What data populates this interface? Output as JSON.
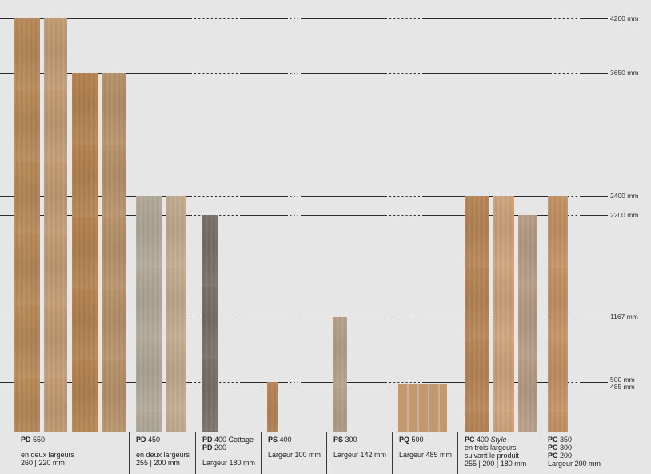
{
  "height_lines": [
    {
      "value": 4200,
      "label": "4200 mm"
    },
    {
      "value": 3650,
      "label": "3650 mm"
    },
    {
      "value": 2400,
      "label": "2400 mm"
    },
    {
      "value": 2200,
      "label": "2200 mm"
    },
    {
      "value": 1167,
      "label": "1167 mm"
    },
    {
      "value": 500,
      "label": "500 mm"
    },
    {
      "value": 485,
      "label": "485 mm"
    }
  ],
  "planks": [
    {
      "group": 0,
      "length": 4200,
      "color": "#b98a58"
    },
    {
      "group": 0,
      "length": 4200,
      "color": "#c59e72"
    },
    {
      "group": 0,
      "length": 3650,
      "color": "#b7834f"
    },
    {
      "group": 0,
      "length": 3650,
      "color": "#b8936a"
    },
    {
      "group": 1,
      "length": 2400,
      "color": "#b3ab9a"
    },
    {
      "group": 1,
      "length": 2400,
      "color": "#c4ad90"
    },
    {
      "group": 2,
      "length": 2200,
      "color": "#7a6f69"
    },
    {
      "group": 3,
      "length": 500,
      "color": "#b58558"
    },
    {
      "group": 4,
      "length": 1167,
      "color": "#b7a28b"
    },
    {
      "group": 5,
      "length": 485,
      "color": "#c19870"
    },
    {
      "group": 6,
      "length": 2400,
      "color": "#b88656"
    },
    {
      "group": 6,
      "length": 2400,
      "color": "#cfa57c"
    },
    {
      "group": 6,
      "length": 2200,
      "color": "#b99d86"
    },
    {
      "group": 7,
      "length": 2400,
      "color": "#c59464"
    }
  ],
  "captions": [
    {
      "lines": [
        [
          {
            "b": "PD"
          },
          {
            "t": " 550"
          }
        ]
      ],
      "desc": [
        "en deux largeurs",
        "260 | 220 mm"
      ],
      "gap": true
    },
    {
      "lines": [
        [
          {
            "b": "PD"
          },
          {
            "t": " 450"
          }
        ]
      ],
      "desc": [
        "en deux largeurs",
        "255 | 200 mm"
      ],
      "gap": true
    },
    {
      "lines": [
        [
          {
            "b": "PD"
          },
          {
            "t": " 400 Cottage"
          }
        ],
        [
          {
            "b": "PD"
          },
          {
            "t": " 200"
          }
        ]
      ],
      "desc": [
        "Largeur 180 mm"
      ],
      "gap": true
    },
    {
      "lines": [
        [
          {
            "b": "PS"
          },
          {
            "t": " 400"
          }
        ]
      ],
      "desc": [
        "Largeur 100 mm"
      ],
      "gap": true
    },
    {
      "lines": [
        [
          {
            "b": "PS"
          },
          {
            "t": " 300"
          }
        ]
      ],
      "desc": [
        "Largeur 142 mm"
      ],
      "gap": true
    },
    {
      "lines": [
        [
          {
            "b": "PQ"
          },
          {
            "t": " 500"
          }
        ]
      ],
      "desc": [
        "Largeur 485 mm"
      ],
      "gap": true
    },
    {
      "lines": [
        [
          {
            "b": "PC"
          },
          {
            "t": " 400 "
          },
          {
            "i": "Style"
          }
        ]
      ],
      "desc": [
        "en trois largeurs",
        "suivant le produit",
        "255 | 200 | 180 mm"
      ],
      "gap": false
    },
    {
      "lines": [
        [
          {
            "b": "PC"
          },
          {
            "t": " 350"
          }
        ],
        [
          {
            "b": "PC"
          },
          {
            "t": " 300"
          }
        ],
        [
          {
            "b": "PC"
          },
          {
            "t": " 200"
          }
        ]
      ],
      "desc": [
        "Largeur 200 mm"
      ],
      "gap": false
    }
  ]
}
